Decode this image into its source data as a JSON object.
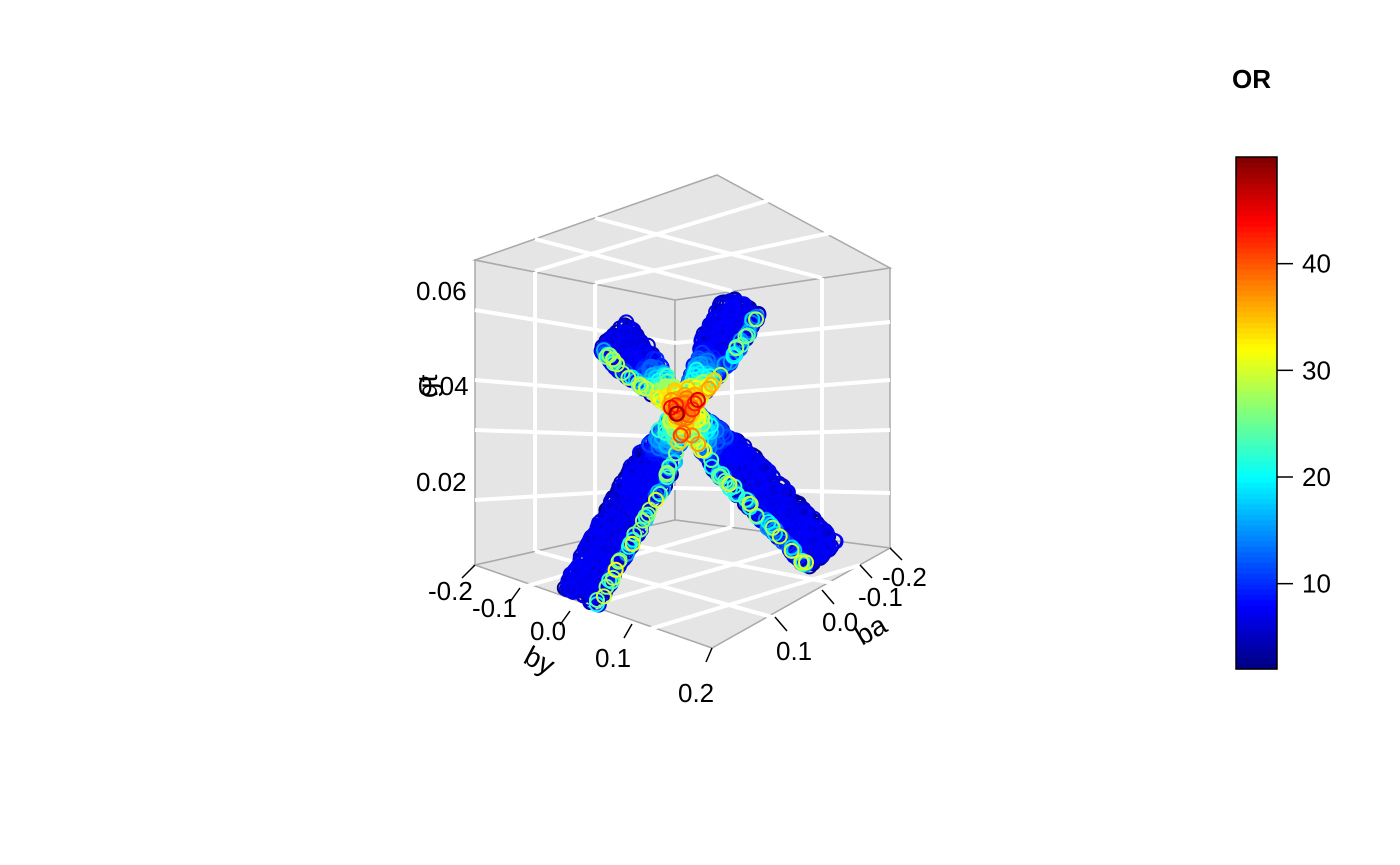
{
  "chart_data": {
    "type": "scatter",
    "subtype": "3d-scatter",
    "xlabel": "ba",
    "ylabel": "by",
    "zlabel": "gt",
    "x_ticks": [
      "-0.2",
      "-0.1",
      "0.0",
      "0.1"
    ],
    "y_ticks": [
      "-0.2",
      "-0.1",
      "0.0",
      "0.1",
      "0.2"
    ],
    "z_ticks": [
      "0.02",
      "0.04",
      "0.06"
    ],
    "xlim": [
      -0.2,
      0.2
    ],
    "ylim": [
      -0.2,
      0.2
    ],
    "zlim": [
      0.01,
      0.065
    ],
    "grid": true,
    "panel_color": "#e6e6e6",
    "colorkey": {
      "title": "OR",
      "ticks": [
        "10",
        "20",
        "30",
        "40"
      ],
      "range": [
        2,
        50
      ],
      "palette": "jet",
      "colors": [
        "#00007F",
        "#0000FF",
        "#007FFF",
        "#00FFFF",
        "#7FFF7F",
        "#FFFF00",
        "#FF7F00",
        "#FF0000",
        "#7F0000"
      ]
    },
    "series": [
      {
        "description_points": [
          {
            "ba": -0.02,
            "by": 0.02,
            "gt": 0.012,
            "OR": 3
          },
          {
            "ba": -0.01,
            "by": 0.01,
            "gt": 0.025,
            "OR": 5
          },
          {
            "ba": 0.0,
            "by": 0.0,
            "gt": 0.04,
            "OR": 45
          },
          {
            "ba": 0.01,
            "by": -0.01,
            "gt": 0.052,
            "OR": 6
          },
          {
            "ba": 0.02,
            "by": -0.02,
            "gt": 0.062,
            "OR": 3
          }
        ]
      },
      {
        "description_points": [
          {
            "ba": -0.15,
            "by": -0.15,
            "gt": 0.058,
            "OR": 3
          },
          {
            "ba": -0.07,
            "by": -0.07,
            "gt": 0.048,
            "OR": 8
          },
          {
            "ba": 0.0,
            "by": 0.0,
            "gt": 0.04,
            "OR": 45
          },
          {
            "ba": 0.07,
            "by": 0.07,
            "gt": 0.03,
            "OR": 8
          },
          {
            "ba": 0.15,
            "by": 0.15,
            "gt": 0.02,
            "OR": 3
          }
        ]
      }
    ]
  }
}
